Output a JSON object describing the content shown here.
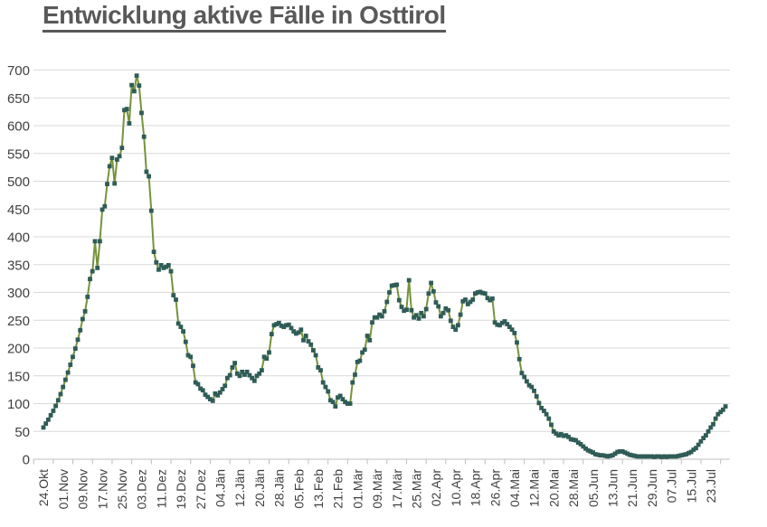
{
  "page": {
    "background": "#FFFFFF"
  },
  "chart_data": {
    "type": "line",
    "title": "Entwicklung aktive Fälle in Osttirol",
    "xlabel": "",
    "ylabel": "",
    "ylim": [
      0,
      700
    ],
    "yticks": [
      0,
      50,
      100,
      150,
      200,
      250,
      300,
      350,
      400,
      450,
      500,
      550,
      600,
      650,
      700
    ],
    "grid": "horizontal-only",
    "legend": "none",
    "marker": "square",
    "label_every": 8,
    "x_tick_labels": [
      "24.Okt",
      "01.Nov",
      "09.Nov",
      "17.Nov",
      "25.Nov",
      "03.Dez",
      "11.Dez",
      "19.Dez",
      "27.Dez",
      "04.Jän",
      "12.Jän",
      "20.Jän",
      "28.Jän",
      "05.Feb",
      "13.Feb",
      "21.Feb",
      "01.Mär",
      "09.Mär",
      "17.Mär",
      "25.Mär",
      "02.Apr",
      "10.Apr",
      "18.Apr",
      "26.Apr",
      "04.Mai",
      "12.Mai",
      "20.Mai",
      "28.Mai",
      "05.Jun",
      "13.Jun",
      "21.Jun",
      "29.Jun",
      "07.Jul",
      "15.Jul",
      "23.Jul"
    ],
    "values": [
      57,
      64,
      71,
      79,
      87,
      96,
      106,
      117,
      130,
      143,
      156,
      170,
      184,
      199,
      215,
      232,
      252,
      266,
      292,
      324,
      338,
      392,
      344,
      392,
      449,
      455,
      495,
      527,
      542,
      496,
      539,
      545,
      560,
      628,
      630,
      604,
      673,
      662,
      690,
      672,
      623,
      580,
      517,
      509,
      447,
      373,
      354,
      341,
      349,
      344,
      346,
      349,
      338,
      295,
      287,
      244,
      238,
      230,
      211,
      187,
      184,
      168,
      138,
      135,
      127,
      124,
      116,
      112,
      108,
      105,
      118,
      115,
      120,
      126,
      132,
      146,
      151,
      165,
      173,
      154,
      150,
      157,
      152,
      157,
      151,
      146,
      141,
      150,
      154,
      160,
      184,
      181,
      192,
      225,
      241,
      243,
      245,
      240,
      238,
      241,
      242,
      236,
      230,
      226,
      228,
      233,
      214,
      222,
      212,
      206,
      196,
      187,
      165,
      160,
      138,
      130,
      122,
      106,
      103,
      95,
      111,
      114,
      108,
      103,
      100,
      100,
      138,
      152,
      175,
      177,
      192,
      197,
      222,
      214,
      246,
      255,
      255,
      260,
      257,
      266,
      283,
      300,
      312,
      313,
      314,
      286,
      274,
      267,
      269,
      322,
      268,
      255,
      259,
      253,
      263,
      257,
      270,
      298,
      317,
      302,
      282,
      275,
      257,
      263,
      271,
      268,
      249,
      238,
      233,
      241,
      260,
      284,
      287,
      279,
      283,
      287,
      298,
      300,
      301,
      299,
      298,
      290,
      286,
      289,
      246,
      242,
      241,
      245,
      248,
      243,
      238,
      233,
      227,
      210,
      180,
      155,
      148,
      140,
      133,
      130,
      123,
      113,
      101,
      92,
      87,
      81,
      73,
      62,
      50,
      46,
      43,
      45,
      42,
      43,
      40,
      36,
      35,
      34,
      30,
      27,
      23,
      19,
      16,
      14,
      12,
      9,
      8,
      7,
      7,
      6,
      5,
      6,
      7,
      10,
      13,
      14,
      14,
      12,
      10,
      8,
      7,
      6,
      5,
      5,
      5,
      5,
      5,
      5,
      5,
      4,
      5,
      5,
      4,
      5,
      4,
      5,
      5,
      5,
      5,
      6,
      7,
      8,
      9,
      11,
      13,
      17,
      20,
      26,
      32,
      38,
      43,
      50,
      57,
      63,
      73,
      81,
      85,
      89,
      95
    ],
    "colors": {
      "line": "#76933C",
      "marker": "#2F5C56",
      "gridline": "#D9D9D9",
      "axis": "#BFBFBF",
      "title_text": "#595959",
      "axis_text": "#404040"
    }
  }
}
